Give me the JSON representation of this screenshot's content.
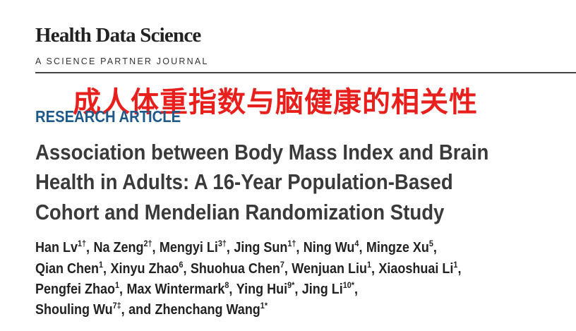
{
  "header": {
    "journal": "Health Data Science",
    "subtitle": "A SCIENCE PARTNER JOURNAL"
  },
  "banner": "成人体重指数与脑健康的相关性",
  "article_type": "RESEARCH ARTICLE",
  "title_lines": [
    "Association between Body Mass Index and Brain",
    "Health in Adults: A 16-Year Population-Based",
    "Cohort and Mendelian Randomization Study"
  ],
  "author_lines": [
    [
      {
        "name": "Han Lv",
        "sup": "1†",
        "trail": ","
      },
      {
        "name": "Na Zeng",
        "sup": "2†",
        "trail": ","
      },
      {
        "name": "Mengyi Li",
        "sup": "3†",
        "trail": ","
      },
      {
        "name": "Jing Sun",
        "sup": "1†",
        "trail": ","
      },
      {
        "name": "Ning Wu",
        "sup": "4",
        "trail": ","
      },
      {
        "name": "Mingze Xu",
        "sup": "5",
        "trail": ","
      }
    ],
    [
      {
        "name": "Qian Chen",
        "sup": "1",
        "trail": ","
      },
      {
        "name": "Xinyu Zhao",
        "sup": "6",
        "trail": ","
      },
      {
        "name": "Shuohua Chen",
        "sup": "7",
        "trail": ","
      },
      {
        "name": "Wenjuan Liu",
        "sup": "1",
        "trail": ","
      },
      {
        "name": "Xiaoshuai Li",
        "sup": "1",
        "trail": ","
      }
    ],
    [
      {
        "name": "Pengfei Zhao",
        "sup": "1",
        "trail": ","
      },
      {
        "name": "Max Wintermark",
        "sup": "8",
        "trail": ","
      },
      {
        "name": "Ying Hui",
        "sup": "9*",
        "trail": ","
      },
      {
        "name": "Jing Li",
        "sup": "10*",
        "trail": ","
      }
    ],
    [
      {
        "name": "Shouling Wu",
        "sup": "7‡",
        "trail": ","
      },
      {
        "prefix": "and",
        "name": "Zhenchang Wang",
        "sup": "1*"
      }
    ]
  ]
}
